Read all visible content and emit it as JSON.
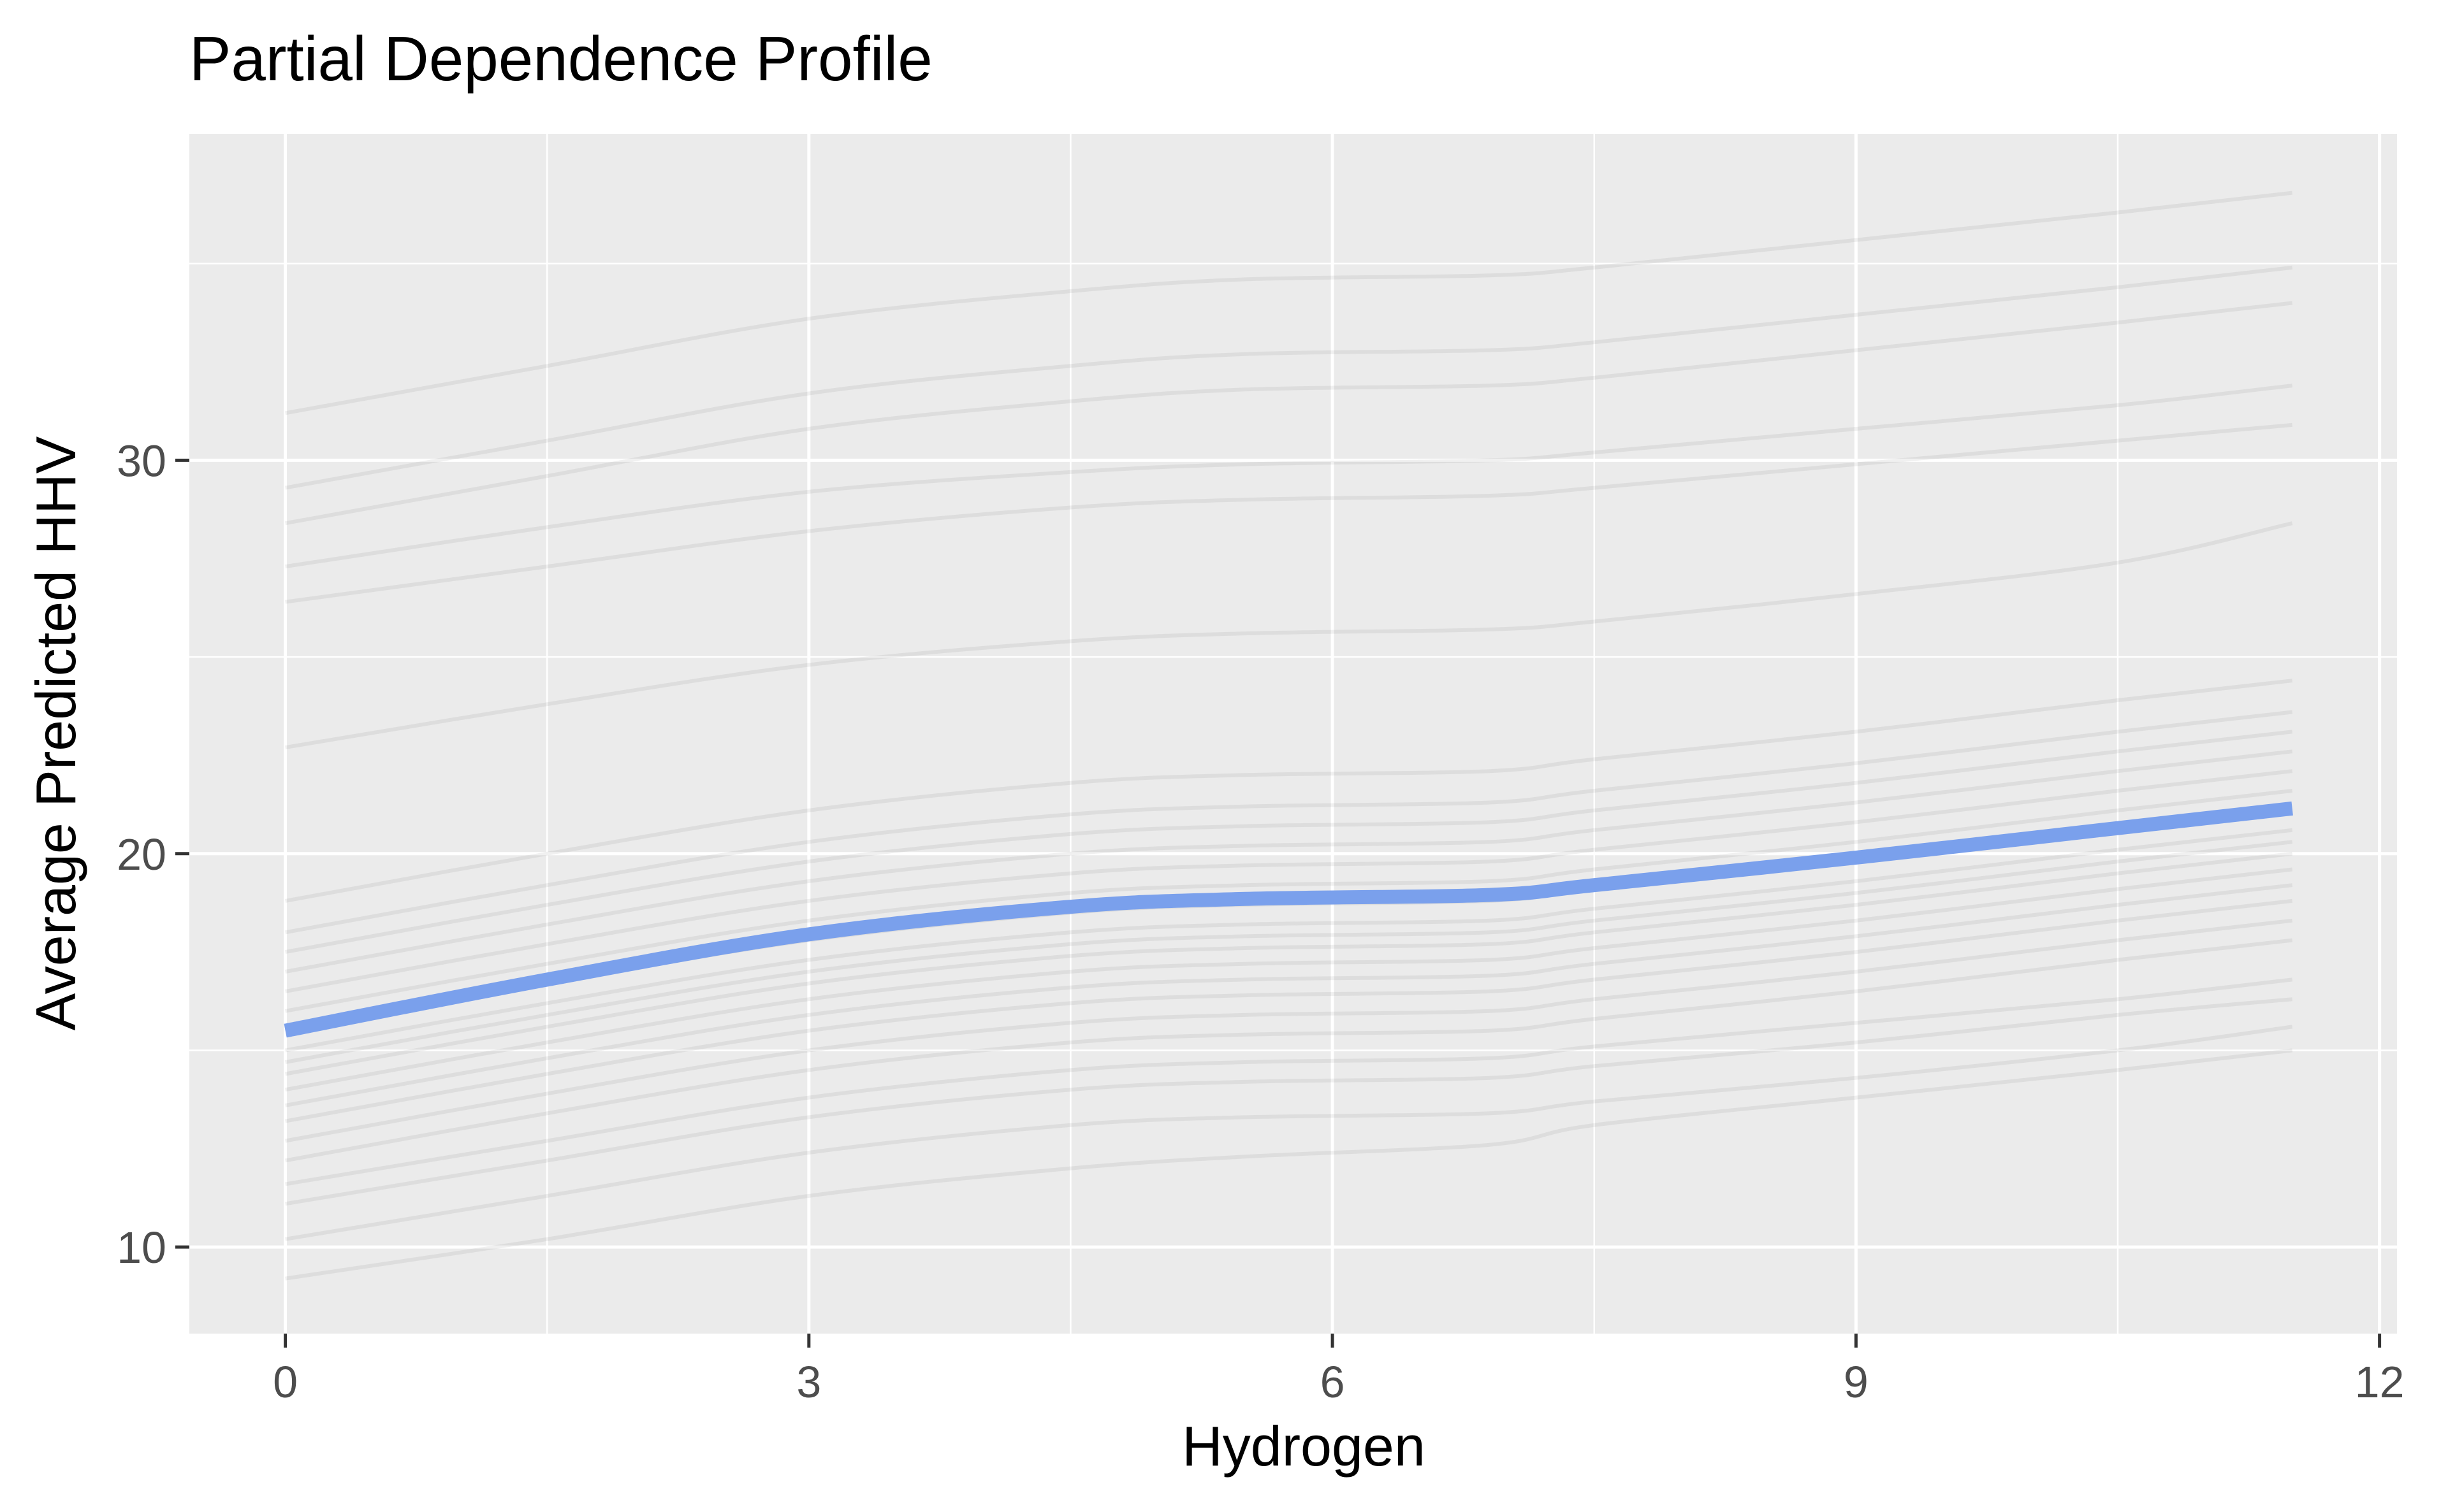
{
  "chart_data": {
    "type": "line",
    "title": "Partial Dependence Profile",
    "xlabel": "Hydrogen",
    "ylabel": "Average Predicted HHV",
    "xlim": [
      -0.55,
      12.1
    ],
    "ylim": [
      7.8,
      38.3
    ],
    "x_ticks": [
      0,
      3,
      6,
      9,
      12
    ],
    "y_ticks": [
      10,
      20,
      30
    ],
    "grid": true,
    "legend": "none",
    "colors": {
      "panel_background": "#ebebeb",
      "grid": "#ffffff",
      "ice_lines": "#555555",
      "pdp_line": "#7aa0ec"
    },
    "x": [
      0,
      1.5,
      3,
      4.5,
      5.5,
      6.9,
      7.5,
      9,
      10.5,
      11.5
    ],
    "series": [
      {
        "role": "average",
        "values": [
          15.5,
          16.8,
          17.95,
          18.65,
          18.85,
          18.95,
          19.2,
          19.9,
          20.65,
          21.15
        ]
      }
    ],
    "ice_curves": [
      [
        31.2,
        32.4,
        33.6,
        34.3,
        34.6,
        34.7,
        34.9,
        35.6,
        36.3,
        36.8
      ],
      [
        29.3,
        30.5,
        31.7,
        32.4,
        32.7,
        32.8,
        33.0,
        33.7,
        34.4,
        34.9
      ],
      [
        28.4,
        29.6,
        30.8,
        31.5,
        31.8,
        31.9,
        32.1,
        32.8,
        33.5,
        34.0
      ],
      [
        27.3,
        28.3,
        29.2,
        29.7,
        29.9,
        30.0,
        30.2,
        30.8,
        31.4,
        31.9
      ],
      [
        26.4,
        27.3,
        28.2,
        28.8,
        29.0,
        29.1,
        29.3,
        29.9,
        30.5,
        30.9
      ],
      [
        22.7,
        23.8,
        24.8,
        25.4,
        25.6,
        25.7,
        25.9,
        26.6,
        27.4,
        28.4
      ],
      [
        18.8,
        20.0,
        21.1,
        21.8,
        22.0,
        22.1,
        22.4,
        23.1,
        23.9,
        24.4
      ],
      [
        18.0,
        19.2,
        20.3,
        21.0,
        21.2,
        21.3,
        21.6,
        22.3,
        23.1,
        23.6
      ],
      [
        17.5,
        18.7,
        19.8,
        20.5,
        20.7,
        20.8,
        21.1,
        21.8,
        22.6,
        23.1
      ],
      [
        17.0,
        18.2,
        19.3,
        20.0,
        20.2,
        20.3,
        20.6,
        21.3,
        22.1,
        22.6
      ],
      [
        16.5,
        17.7,
        18.8,
        19.5,
        19.7,
        19.8,
        20.1,
        20.8,
        21.6,
        22.1
      ],
      [
        16.0,
        17.2,
        18.3,
        19.0,
        19.2,
        19.3,
        19.6,
        20.3,
        21.1,
        21.6
      ],
      [
        15.5,
        16.7,
        17.8,
        18.5,
        18.7,
        18.8,
        19.1,
        19.8,
        20.6,
        21.1
      ],
      [
        15.0,
        16.2,
        17.3,
        18.0,
        18.2,
        18.3,
        18.6,
        19.3,
        20.1,
        20.6
      ],
      [
        14.7,
        15.9,
        17.0,
        17.7,
        17.9,
        18.0,
        18.3,
        19.0,
        19.8,
        20.3
      ],
      [
        14.4,
        15.6,
        16.7,
        17.4,
        17.6,
        17.7,
        18.0,
        18.7,
        19.5,
        20.0
      ],
      [
        14.0,
        15.2,
        16.3,
        17.0,
        17.2,
        17.3,
        17.6,
        18.3,
        19.1,
        19.6
      ],
      [
        13.6,
        14.8,
        15.9,
        16.6,
        16.8,
        16.9,
        17.2,
        17.9,
        18.7,
        19.2
      ],
      [
        13.2,
        14.4,
        15.5,
        16.2,
        16.4,
        16.5,
        16.8,
        17.5,
        18.3,
        18.8
      ],
      [
        12.7,
        13.9,
        15.0,
        15.7,
        15.9,
        16.0,
        16.3,
        17.0,
        17.8,
        18.3
      ],
      [
        12.2,
        13.4,
        14.5,
        15.2,
        15.4,
        15.5,
        15.8,
        16.5,
        17.3,
        17.8
      ],
      [
        11.6,
        12.7,
        13.8,
        14.5,
        14.7,
        14.8,
        15.1,
        15.7,
        16.3,
        16.8
      ],
      [
        11.1,
        12.2,
        13.3,
        14.0,
        14.2,
        14.3,
        14.6,
        15.2,
        15.9,
        16.3
      ],
      [
        10.2,
        11.3,
        12.4,
        13.1,
        13.3,
        13.4,
        13.7,
        14.3,
        15.0,
        15.6
      ],
      [
        9.2,
        10.2,
        11.3,
        12.0,
        12.3,
        12.6,
        13.1,
        13.8,
        14.5,
        15.0
      ]
    ]
  }
}
